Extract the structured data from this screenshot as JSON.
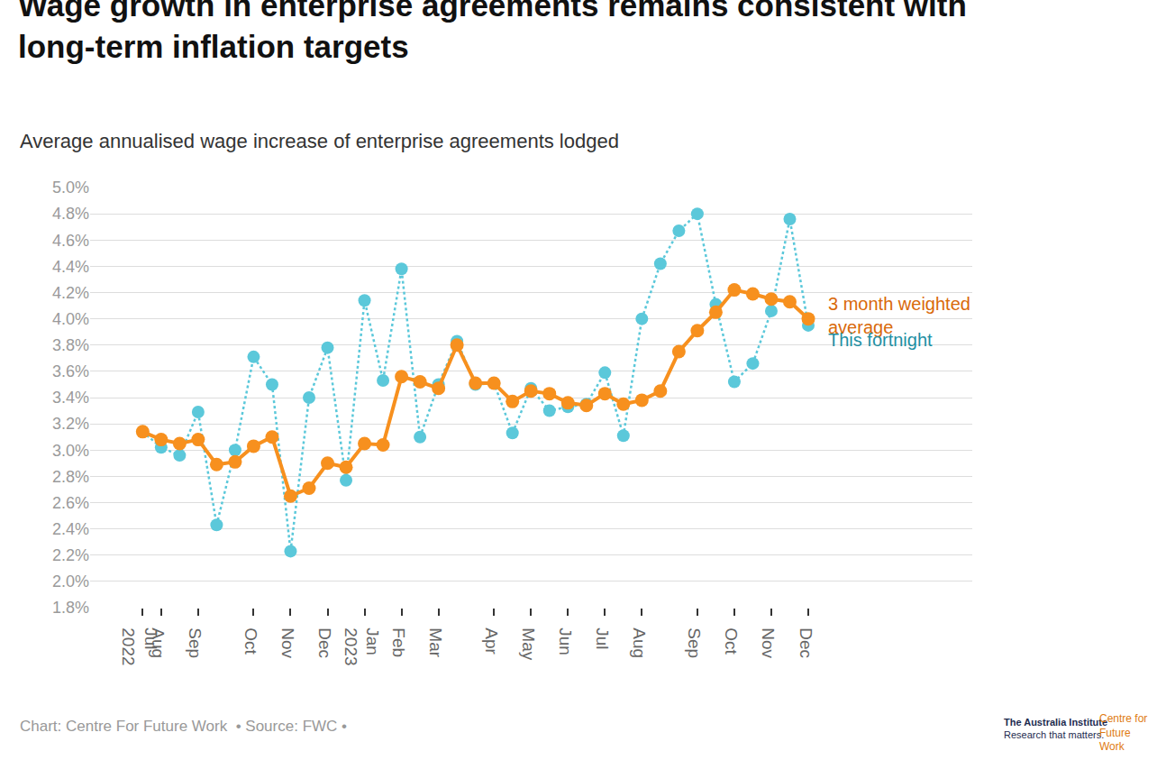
{
  "chart_data": {
    "type": "line",
    "title": "Wage growth in enterprise agreements remains consistent with long-term inflation targets",
    "subtitle": "Average annualised wage increase of enterprise agreements lodged",
    "source": "Chart: Centre For Future Work  • Source: FWC •",
    "logo": [
      "The Australia Institute",
      "Research that matters.",
      "Centre for Future Work"
    ],
    "categories": [
      "Jul 2022",
      "Aug",
      null,
      "Sep",
      null,
      null,
      "Oct",
      null,
      "Nov",
      null,
      "Dec",
      null,
      "Jan 2023",
      null,
      "Feb",
      null,
      "Mar",
      null,
      null,
      "Apr",
      null,
      "May",
      null,
      "Jun",
      null,
      "Jul",
      null,
      "Aug",
      null,
      null,
      "Sep",
      null,
      "Oct",
      null,
      "Nov",
      null,
      "Dec"
    ],
    "series": [
      {
        "name": "3 month weighted average",
        "color": "#f7901e",
        "marker": "circle",
        "line_style": "solid",
        "values": [
          3.14,
          3.08,
          3.05,
          3.08,
          2.89,
          2.91,
          3.03,
          3.1,
          2.65,
          2.71,
          2.9,
          2.87,
          3.05,
          3.04,
          3.56,
          3.52,
          3.47,
          3.8,
          3.51,
          3.51,
          3.37,
          3.45,
          3.43,
          3.36,
          3.34,
          3.43,
          3.35,
          3.38,
          3.45,
          3.75,
          3.91,
          4.05,
          4.22,
          4.19,
          4.15,
          4.13,
          4.0
        ]
      },
      {
        "name": "This fortnight",
        "color": "#5bc8da",
        "marker": "circle",
        "line_style": "dot",
        "values": [
          3.14,
          3.02,
          2.96,
          3.29,
          2.43,
          3.0,
          3.71,
          3.5,
          2.23,
          3.4,
          3.78,
          2.77,
          4.14,
          3.53,
          4.38,
          3.1,
          3.5,
          3.83,
          3.5,
          3.51,
          3.13,
          3.47,
          3.3,
          3.33,
          3.35,
          3.59,
          3.11,
          4.0,
          4.42,
          4.67,
          4.8,
          4.11,
          3.52,
          3.66,
          4.06,
          4.76,
          3.95
        ]
      }
    ],
    "ylim": [
      1.8,
      5.0
    ],
    "yticks": [
      {
        "value": 1.8,
        "label": "1.8%"
      },
      {
        "value": 2.0,
        "label": "2.0%"
      },
      {
        "value": 2.2,
        "label": "2.2%"
      },
      {
        "value": 2.4,
        "label": "2.4%"
      },
      {
        "value": 2.6,
        "label": "2.6%"
      },
      {
        "value": 2.8,
        "label": "2.8%"
      },
      {
        "value": 3.0,
        "label": "3.0%"
      },
      {
        "value": 3.2,
        "label": "3.2%"
      },
      {
        "value": 3.4,
        "label": "3.4%"
      },
      {
        "value": 3.6,
        "label": "3.6%"
      },
      {
        "value": 3.8,
        "label": "3.8%"
      },
      {
        "value": 4.0,
        "label": "4.0%"
      },
      {
        "value": 4.2,
        "label": "4.2%"
      },
      {
        "value": 4.4,
        "label": "4.4%"
      },
      {
        "value": 4.6,
        "label": "4.6%"
      },
      {
        "value": 4.8,
        "label": "4.8%"
      },
      {
        "value": 5.0,
        "label": "5.0%"
      }
    ],
    "grid": true
  }
}
